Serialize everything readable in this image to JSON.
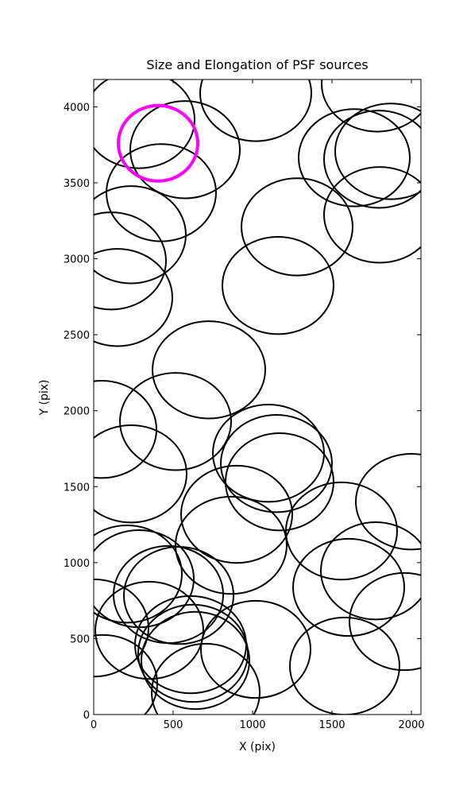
{
  "chart_data": {
    "type": "ellipse",
    "title": "Size and Elongation of PSF sources",
    "xlabel": "X (pix)",
    "ylabel": "Y (pix)",
    "xlim": [
      0,
      2060
    ],
    "ylim": [
      0,
      4180
    ],
    "xticks": [
      0,
      500,
      1000,
      1500,
      2000
    ],
    "yticks": [
      0,
      500,
      1000,
      1500,
      2000,
      2500,
      3000,
      3500,
      4000
    ],
    "series": [
      {
        "color": "#000000",
        "linewidth": 2,
        "x": [
          1020,
          1785,
          1870,
          1795,
          1640,
          1800,
          1280,
          1160,
          575,
          425,
          235,
          110,
          150,
          285,
          725,
          515,
          50,
          235,
          1100,
          1150,
          1170,
          900,
          865,
          1560,
          2000,
          1775,
          1605,
          1955,
          210,
          285,
          470,
          535,
          350,
          610,
          1020,
          625,
          640,
          1580,
          705,
          60,
          0
        ],
        "y": [
          4089,
          4152,
          3707,
          3655,
          3665,
          3289,
          3210,
          2824,
          3718,
          3435,
          3158,
          2986,
          2745,
          3916,
          2269,
          1929,
          1877,
          1584,
          1720,
          1652,
          1532,
          1318,
          1114,
          1208,
          1401,
          946,
          837,
          612,
          925,
          894,
          790,
          784,
          554,
          460,
          429,
          403,
          356,
          319,
          146,
          204,
          570
        ],
        "width": [
          700,
          700,
          700,
          690,
          700,
          700,
          700,
          700,
          690,
          690,
          690,
          690,
          690,
          700,
          710,
          700,
          690,
          700,
          700,
          700,
          680,
          700,
          700,
          700,
          700,
          690,
          700,
          690,
          690,
          690,
          690,
          690,
          680,
          700,
          690,
          690,
          680,
          690,
          680,
          680,
          690
        ],
        "height": [
          630,
          630,
          630,
          640,
          640,
          630,
          640,
          640,
          640,
          640,
          640,
          640,
          640,
          640,
          640,
          640,
          640,
          640,
          640,
          640,
          640,
          640,
          640,
          640,
          630,
          640,
          640,
          640,
          640,
          640,
          640,
          640,
          640,
          640,
          640,
          640,
          640,
          640,
          640,
          640,
          640
        ]
      },
      {
        "color": "#ff00ff",
        "linewidth": 4,
        "x": [
          405
        ],
        "y": [
          3760
        ],
        "width": [
          500
        ],
        "height": [
          497
        ]
      }
    ]
  }
}
